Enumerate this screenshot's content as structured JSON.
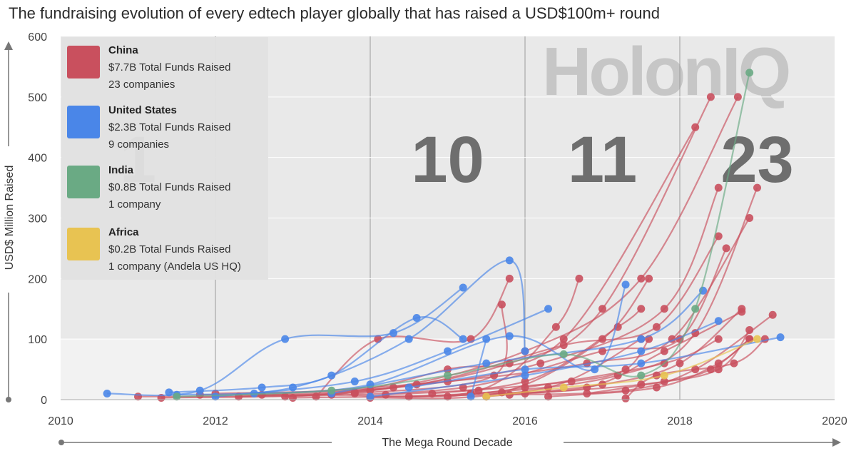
{
  "title": "The fundraising evolution of every edtech player globally that has raised a USD$100m+ round",
  "watermark": "HolonIQ",
  "period_counts": [
    "1",
    "10",
    "11",
    "23"
  ],
  "colors": {
    "China": "#c9505e",
    "United States": "#4a86e8",
    "India": "#6aaa84",
    "Africa": "#e8c352",
    "plot_bg": "#e9e9e9",
    "plot_bg_low": "#f2f2f2"
  },
  "legend": [
    {
      "name": "China",
      "line1": "$7.7B Total Funds Raised",
      "line2": "23 companies",
      "color": "#c9505e"
    },
    {
      "name": "United States",
      "line1": "$2.3B Total Funds Raised",
      "line2": "9 companies",
      "color": "#4a86e8"
    },
    {
      "name": "India",
      "line1": "$0.8B Total Funds Raised",
      "line2": "1 company",
      "color": "#6aaa84"
    },
    {
      "name": "Africa",
      "line1": "$0.2B Total Funds Raised",
      "line2": "1 company (Andela US HQ)",
      "color": "#e8c352"
    }
  ],
  "chart_data": {
    "type": "line",
    "title": "The fundraising evolution of every edtech player globally that has raised a USD$100m+ round",
    "xlabel": "The Mega Round Decade",
    "ylabel": "USD$ Million Raised",
    "xlim": [
      2010,
      2020
    ],
    "ylim": [
      0,
      600
    ],
    "x_ticks": [
      "2010",
      "2012",
      "2014",
      "2016",
      "2018",
      "2020"
    ],
    "y_ticks": [
      "0",
      "100",
      "200",
      "300",
      "400",
      "500",
      "600"
    ],
    "grid": true,
    "series": [
      {
        "name": "China",
        "color": "#c9505e",
        "companies": [
          [
            [
              2011.0,
              5
            ],
            [
              2013.5,
              10
            ],
            [
              2015.0,
              50
            ],
            [
              2016.5,
              100
            ],
            [
              2018.2,
              450
            ]
          ],
          [
            [
              2011.3,
              3
            ],
            [
              2013.8,
              12
            ],
            [
              2015.8,
              60
            ],
            [
              2017.0,
              150
            ],
            [
              2018.4,
              500
            ]
          ],
          [
            [
              2011.8,
              8
            ],
            [
              2014.0,
              15
            ],
            [
              2016.0,
              80
            ],
            [
              2017.5,
              200
            ],
            [
              2018.75,
              500
            ]
          ],
          [
            [
              2012.0,
              10
            ],
            [
              2014.3,
              20
            ],
            [
              2016.2,
              60
            ],
            [
              2017.8,
              150
            ],
            [
              2018.5,
              350
            ]
          ],
          [
            [
              2012.3,
              5
            ],
            [
              2014.6,
              25
            ],
            [
              2016.5,
              90
            ],
            [
              2017.7,
              120
            ],
            [
              2018.5,
              270
            ]
          ],
          [
            [
              2012.6,
              8
            ],
            [
              2015.0,
              30
            ],
            [
              2016.8,
              60
            ],
            [
              2017.9,
              100
            ],
            [
              2018.9,
              300
            ]
          ],
          [
            [
              2012.9,
              5
            ],
            [
              2015.2,
              20
            ],
            [
              2017.0,
              80
            ],
            [
              2018.0,
              100
            ],
            [
              2018.6,
              250
            ]
          ],
          [
            [
              2013.0,
              3
            ],
            [
              2015.3,
              10
            ],
            [
              2017.2,
              40
            ],
            [
              2018.2,
              110
            ],
            [
              2019.0,
              350
            ]
          ],
          [
            [
              2013.3,
              5
            ],
            [
              2014.1,
              100
            ],
            [
              2015.3,
              100
            ],
            [
              2015.8,
              200
            ]
          ],
          [
            [
              2013.5,
              8
            ],
            [
              2015.4,
              15
            ],
            [
              2016.4,
              120
            ],
            [
              2016.7,
              200
            ]
          ],
          [
            [
              2013.8,
              10
            ],
            [
              2015.6,
              40
            ],
            [
              2015.7,
              157
            ]
          ],
          [
            [
              2014.0,
              3
            ],
            [
              2015.7,
              12
            ],
            [
              2017.0,
              100
            ],
            [
              2017.6,
              200
            ]
          ],
          [
            [
              2014.2,
              8
            ],
            [
              2016.0,
              30
            ],
            [
              2017.2,
              120
            ],
            [
              2017.5,
              150
            ]
          ],
          [
            [
              2014.5,
              5
            ],
            [
              2016.3,
              20
            ],
            [
              2017.5,
              100
            ]
          ],
          [
            [
              2014.8,
              10
            ],
            [
              2016.6,
              30
            ],
            [
              2017.3,
              50
            ],
            [
              2017.6,
              100
            ]
          ],
          [
            [
              2015.0,
              5
            ],
            [
              2016.0,
              20
            ],
            [
              2017.8,
              60
            ],
            [
              2018.5,
              100
            ]
          ],
          [
            [
              2015.3,
              10
            ],
            [
              2016.8,
              20
            ],
            [
              2017.8,
              80
            ],
            [
              2018.8,
              145
            ]
          ],
          [
            [
              2015.5,
              5
            ],
            [
              2017.0,
              25
            ],
            [
              2018.0,
              60
            ],
            [
              2018.8,
              150
            ]
          ],
          [
            [
              2015.8,
              8
            ],
            [
              2017.3,
              15
            ],
            [
              2018.2,
              50
            ],
            [
              2019.2,
              140
            ]
          ],
          [
            [
              2016.0,
              10
            ],
            [
              2017.5,
              25
            ],
            [
              2018.5,
              50
            ],
            [
              2018.9,
              115
            ]
          ],
          [
            [
              2016.3,
              5
            ],
            [
              2017.7,
              20
            ],
            [
              2018.5,
              60
            ],
            [
              2018.9,
              100
            ]
          ],
          [
            [
              2016.8,
              10
            ],
            [
              2017.8,
              30
            ],
            [
              2018.4,
              50
            ],
            [
              2018.9,
              100
            ]
          ],
          [
            [
              2017.3,
              2
            ],
            [
              2017.7,
              40
            ],
            [
              2018.7,
              60
            ],
            [
              2019.1,
              100
            ]
          ]
        ]
      },
      {
        "name": "United States",
        "color": "#4a86e8",
        "companies": [
          [
            [
              2010.6,
              10
            ],
            [
              2011.8,
              15
            ],
            [
              2012.9,
              100
            ],
            [
              2014.3,
              110
            ],
            [
              2015.2,
              185
            ]
          ],
          [
            [
              2011.4,
              12
            ],
            [
              2012.6,
              20
            ],
            [
              2013.5,
              40
            ],
            [
              2014.6,
              135
            ],
            [
              2015.2,
              100
            ]
          ],
          [
            [
              2011.5,
              8
            ],
            [
              2013.0,
              20
            ],
            [
              2014.5,
              100
            ],
            [
              2015.8,
              230
            ],
            [
              2016.0,
              80
            ]
          ],
          [
            [
              2012.0,
              5
            ],
            [
              2013.8,
              30
            ],
            [
              2015.0,
              80
            ],
            [
              2016.3,
              150
            ]
          ],
          [
            [
              2012.5,
              10
            ],
            [
              2014.0,
              25
            ],
            [
              2015.8,
              105
            ],
            [
              2016.9,
              50
            ],
            [
              2017.3,
              190
            ]
          ],
          [
            [
              2013.5,
              10
            ],
            [
              2015.5,
              60
            ],
            [
              2017.5,
              100
            ],
            [
              2018.3,
              180
            ]
          ],
          [
            [
              2014.0,
              5
            ],
            [
              2016.0,
              40
            ],
            [
              2017.5,
              80
            ],
            [
              2018.5,
              130
            ]
          ],
          [
            [
              2014.5,
              20
            ],
            [
              2016.0,
              50
            ],
            [
              2017.5,
              60
            ],
            [
              2019.3,
              103
            ]
          ],
          [
            [
              2015.3,
              5
            ],
            [
              2015.5,
              100
            ]
          ]
        ]
      },
      {
        "name": "India",
        "color": "#6aaa84",
        "companies": [
          [
            [
              2011.5,
              5
            ],
            [
              2013.5,
              15
            ],
            [
              2015.0,
              40
            ],
            [
              2016.5,
              75
            ],
            [
              2017.5,
              40
            ],
            [
              2018.2,
              150
            ],
            [
              2018.9,
              540
            ]
          ]
        ]
      },
      {
        "name": "Africa",
        "color": "#e8c352",
        "companies": [
          [
            [
              2015.5,
              5
            ],
            [
              2016.5,
              20
            ],
            [
              2017.8,
              40
            ],
            [
              2019.0,
              100
            ]
          ]
        ]
      }
    ]
  }
}
